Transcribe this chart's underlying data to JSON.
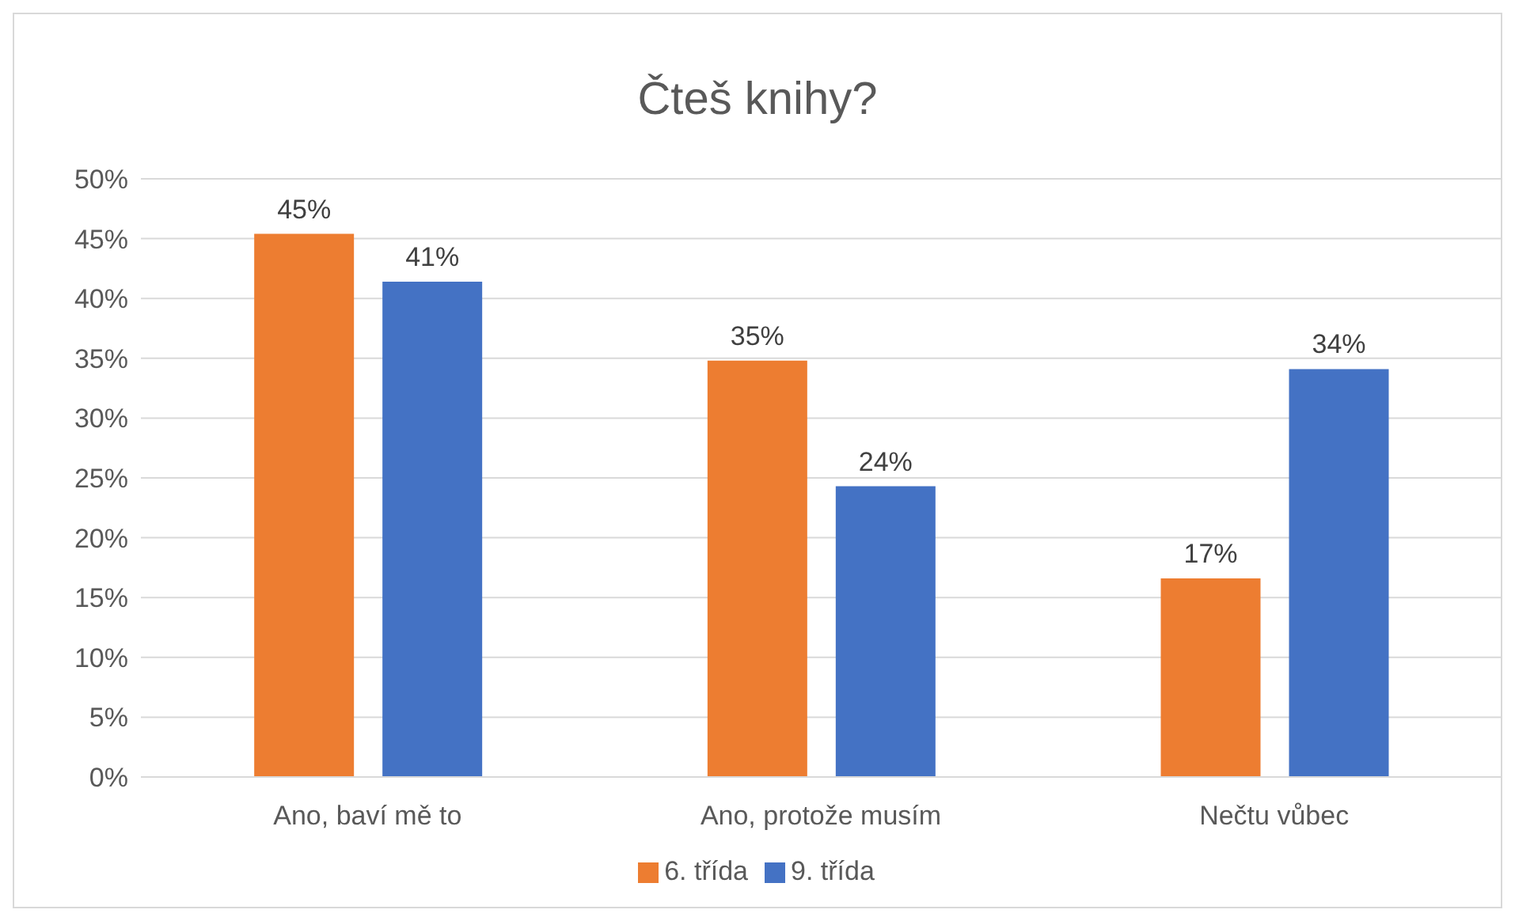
{
  "chart_data": {
    "type": "bar",
    "title": "Čteš knihy?",
    "categories": [
      "Ano, baví mě to",
      "Ano, protože musím",
      "Nečtu vůbec"
    ],
    "series": [
      {
        "name": "6. třída",
        "color": "#ed7d31",
        "values": [
          45.4,
          34.8,
          16.6
        ],
        "value_labels": [
          "45%",
          "35%",
          "17%"
        ]
      },
      {
        "name": "9. třída",
        "color": "#4472c4",
        "values": [
          41.4,
          24.3,
          34.1
        ],
        "value_labels": [
          "41%",
          "24%",
          "34%"
        ]
      }
    ],
    "ylim": [
      0,
      50
    ],
    "yticks": [
      {
        "value": 0,
        "label": "0%"
      },
      {
        "value": 5,
        "label": "5%"
      },
      {
        "value": 10,
        "label": "10%"
      },
      {
        "value": 15,
        "label": "15%"
      },
      {
        "value": 20,
        "label": "20%"
      },
      {
        "value": 25,
        "label": "25%"
      },
      {
        "value": 30,
        "label": "30%"
      },
      {
        "value": 35,
        "label": "35%"
      },
      {
        "value": 40,
        "label": "40%"
      },
      {
        "value": 45,
        "label": "45%"
      },
      {
        "value": 50,
        "label": "50%"
      }
    ],
    "grid": "y",
    "legend": "bottom"
  }
}
